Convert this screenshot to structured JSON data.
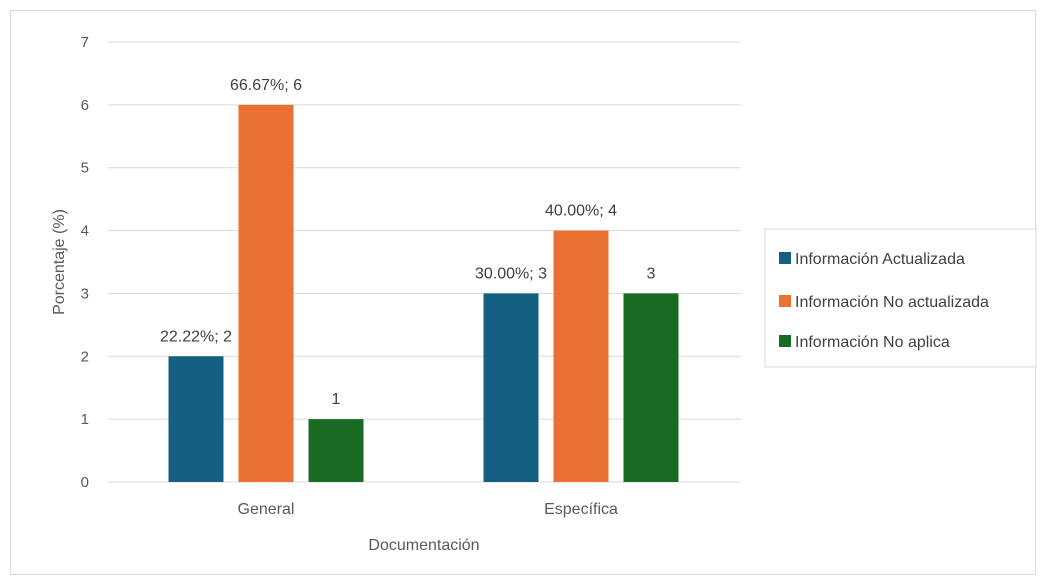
{
  "chart_data": {
    "type": "bar",
    "title": "",
    "xlabel": "Documentación",
    "ylabel": "Porcentaje (%)",
    "ylim": [
      0,
      7
    ],
    "yticks": [
      0,
      1,
      2,
      3,
      4,
      5,
      6,
      7
    ],
    "grid": true,
    "legend_position": "right",
    "categories": [
      "General",
      "Específica"
    ],
    "series": [
      {
        "name": "Información Actualizada",
        "color": "#156082",
        "values": [
          2,
          3
        ],
        "labels": [
          "22.22%; 2",
          "30.00%; 3"
        ]
      },
      {
        "name": "Información  No actualizada",
        "color": "#E97132",
        "values": [
          6,
          4
        ],
        "labels": [
          "66.67%; 6",
          "40.00%; 4"
        ]
      },
      {
        "name": "Información  No aplica",
        "color": "#196B24",
        "values": [
          1,
          3
        ],
        "labels": [
          "1",
          "3"
        ]
      }
    ]
  }
}
